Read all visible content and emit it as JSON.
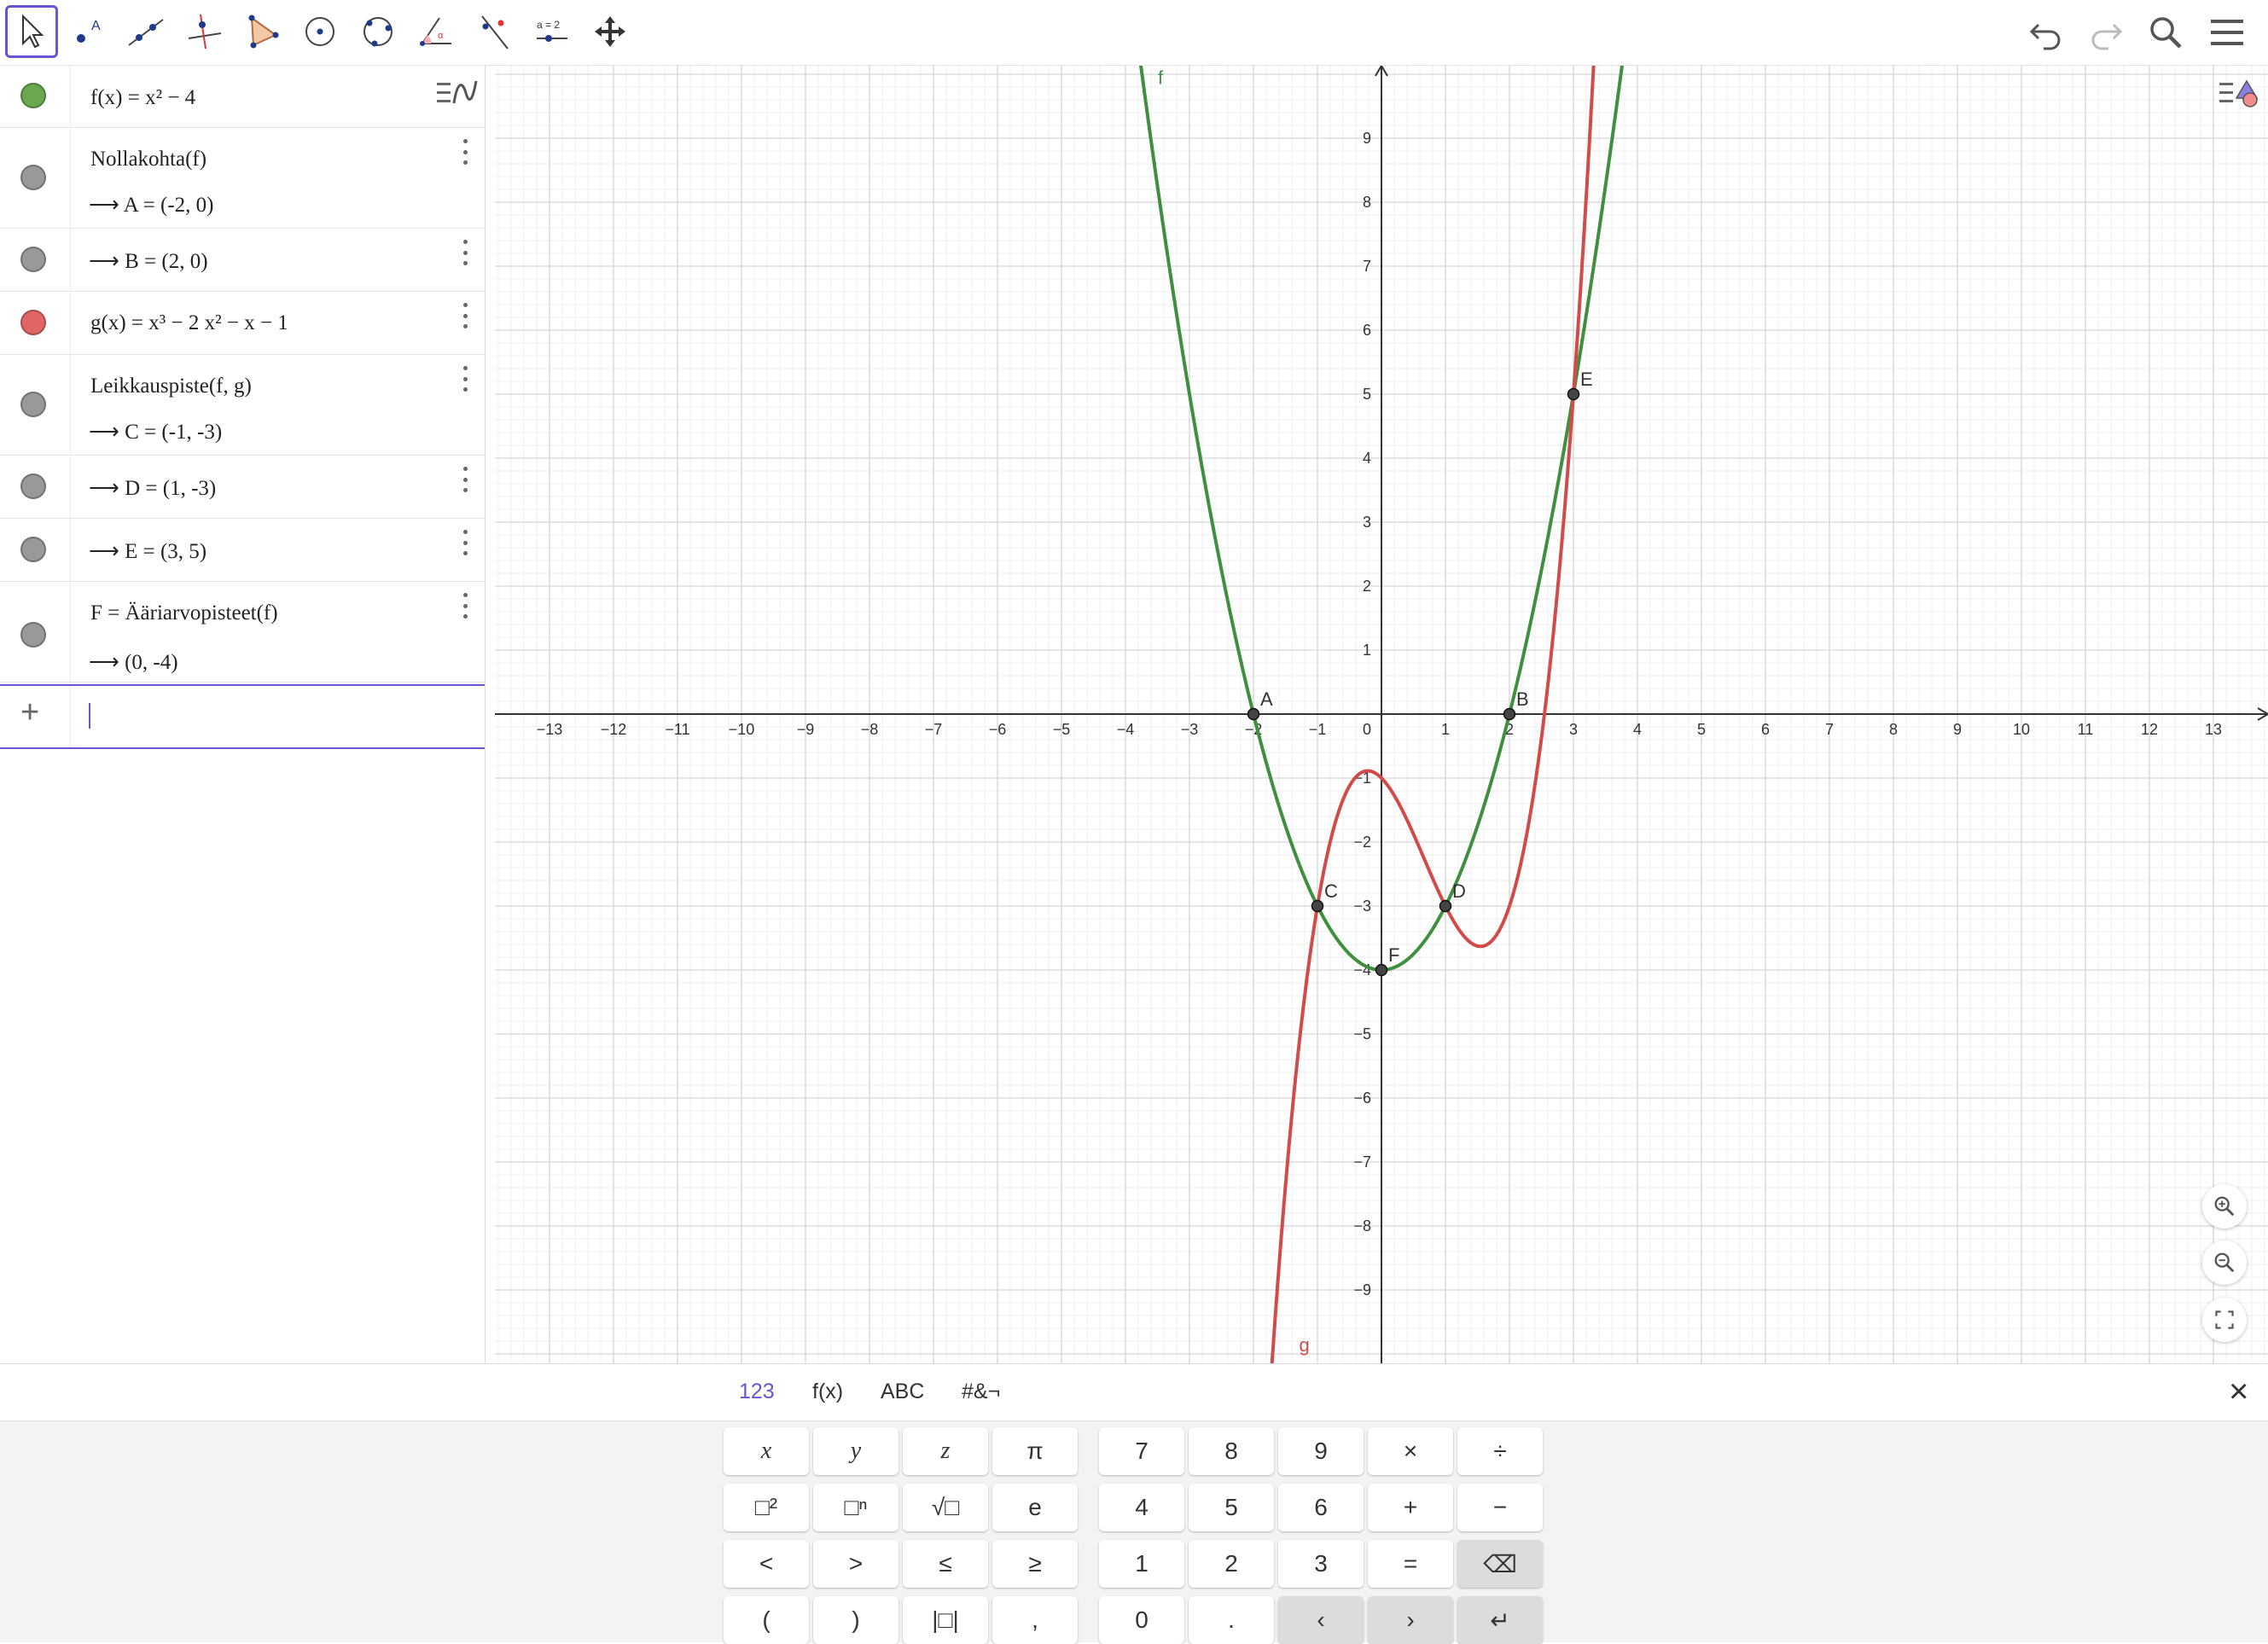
{
  "toolbar": {
    "tools": [
      "move-tool",
      "point-tool",
      "line-tool",
      "perpendicular-line-tool",
      "polygon-tool",
      "circle-center-point-tool",
      "circle-three-points-tool",
      "angle-tool",
      "reflect-tool",
      "slider-tool",
      "move-graphics-view-tool"
    ],
    "slider_label": "a = 2"
  },
  "algebra": {
    "rows": [
      {
        "def": "f(x) = x² − 4",
        "color": "#6aa84f"
      },
      {
        "def": "Nollakohta(f)",
        "result": "A = (-2, 0)",
        "color": "#999999"
      },
      {
        "result": "B = (2, 0)",
        "color": "#999999"
      },
      {
        "def": "g(x) = x³ − 2 x² − x − 1",
        "color": "#e06666"
      },
      {
        "def": "Leikkauspiste(f, g)",
        "result": "C = (-1, -3)",
        "color": "#999999"
      },
      {
        "result": "D = (1, -3)",
        "color": "#999999"
      },
      {
        "result": "E = (3, 5)",
        "color": "#999999"
      },
      {
        "def": "F = Ääriarvopisteet(f)",
        "result": "(0, -4)",
        "color": "#999999"
      }
    ],
    "input_placeholder": ""
  },
  "graph": {
    "x_ticks": [
      "−13",
      "−12",
      "−11",
      "−10",
      "−9",
      "−8",
      "−7",
      "−6",
      "−5",
      "−4",
      "−3",
      "−2",
      "−1",
      "1",
      "2",
      "3",
      "4",
      "5",
      "6",
      "7",
      "8",
      "9",
      "10",
      "11",
      "12",
      "13"
    ],
    "y_ticks": [
      "9",
      "8",
      "7",
      "6",
      "5",
      "4",
      "3",
      "2",
      "1",
      "−1",
      "−2",
      "−3",
      "−4",
      "−5",
      "−6",
      "−7",
      "−8",
      "−9"
    ],
    "origin_label": "0",
    "functions": [
      {
        "label": "f",
        "color": "#3f8f3f"
      },
      {
        "label": "g",
        "color": "#d24b4b"
      }
    ],
    "points": [
      {
        "label": "A",
        "x": -2,
        "y": 0
      },
      {
        "label": "B",
        "x": 2,
        "y": 0
      },
      {
        "label": "C",
        "x": -1,
        "y": -3
      },
      {
        "label": "D",
        "x": 1,
        "y": -3
      },
      {
        "label": "E",
        "x": 3,
        "y": 5
      },
      {
        "label": "F",
        "x": 0,
        "y": -4
      }
    ]
  },
  "keyboard": {
    "tabs": [
      "123",
      "f(x)",
      "ABC",
      "#&¬"
    ],
    "rows": [
      [
        "x",
        "y",
        "z",
        "π",
        "7",
        "8",
        "9",
        "×",
        "÷"
      ],
      [
        "□²",
        "□ⁿ",
        "√□",
        "e",
        "4",
        "5",
        "6",
        "+",
        "−"
      ],
      [
        "<",
        ">",
        "≤",
        "≥",
        "1",
        "2",
        "3",
        "=",
        "⌫"
      ],
      [
        "(",
        ")",
        "|□|",
        ",",
        "0",
        ".",
        "‹",
        "›",
        "↵"
      ]
    ],
    "close": "×"
  }
}
